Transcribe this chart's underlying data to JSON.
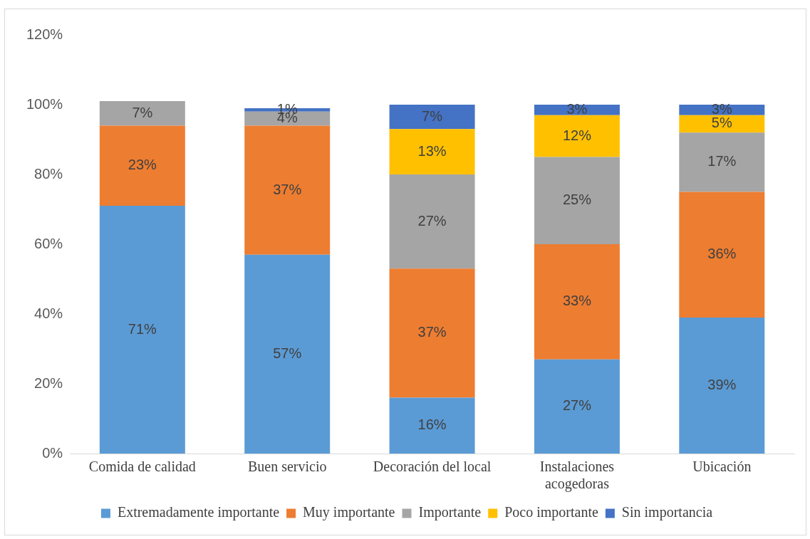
{
  "chart_data": {
    "type": "bar",
    "stacked": true,
    "categories": [
      "Comida de calidad",
      "Buen servicio",
      "Decoración del local",
      "Instalaciones acogedoras",
      "Ubicación"
    ],
    "series": [
      {
        "name": "Extremadamente importante",
        "color": "#5b9bd5",
        "values": [
          71,
          57,
          16,
          27,
          39
        ],
        "value_labels": [
          "71%",
          "57%",
          "16%",
          "27%",
          "39%"
        ]
      },
      {
        "name": "Muy importante",
        "color": "#ed7d31",
        "values": [
          23,
          37,
          37,
          33,
          36
        ],
        "value_labels": [
          "23%",
          "37%",
          "37%",
          "33%",
          "36%"
        ]
      },
      {
        "name": "Importante",
        "color": "#a5a5a5",
        "values": [
          7,
          4,
          27,
          25,
          17
        ],
        "value_labels": [
          "7%",
          "4%",
          "27%",
          "25%",
          "17%"
        ]
      },
      {
        "name": "Poco importante",
        "color": "#ffc000",
        "values": [
          null,
          null,
          13,
          12,
          5
        ],
        "value_labels": [
          null,
          null,
          "13%",
          "12%",
          "5%"
        ]
      },
      {
        "name": "Sin importancia",
        "color": "#4472c4",
        "values": [
          null,
          1,
          7,
          3,
          3
        ],
        "value_labels": [
          null,
          "1%",
          "7%",
          "3%",
          "3%"
        ]
      }
    ],
    "ylim": [
      0,
      120
    ],
    "yticks": [
      {
        "value": 0,
        "label": "0%"
      },
      {
        "value": 20,
        "label": "20%"
      },
      {
        "value": 40,
        "label": "40%"
      },
      {
        "value": 60,
        "label": "60%"
      },
      {
        "value": 80,
        "label": "80%"
      },
      {
        "value": 100,
        "label": "100%"
      },
      {
        "value": 120,
        "label": "120%"
      }
    ],
    "grid": false,
    "legend": "bottom"
  }
}
